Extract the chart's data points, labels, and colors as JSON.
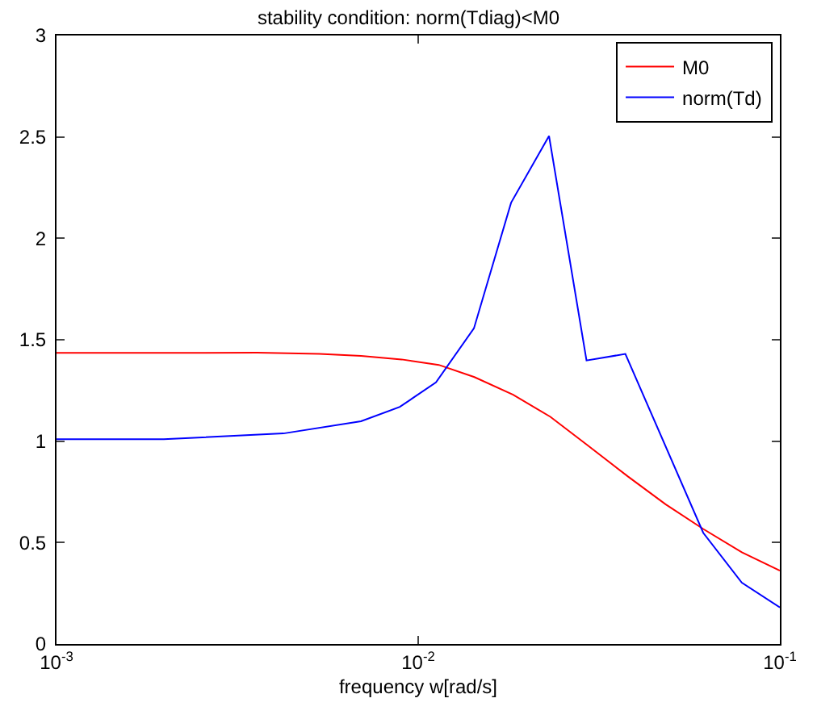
{
  "chart_data": {
    "type": "line",
    "title": "stability condition: norm(Tdiag)<M0",
    "xlabel": "frequency w[rad/s]",
    "log": "x",
    "xlim": [
      0.001,
      0.1
    ],
    "ylim": [
      0,
      3
    ],
    "xticks": [
      {
        "value": 0.001,
        "label": "10$^{-3}$"
      },
      {
        "value": 0.01,
        "label": "10$^{-2}$"
      },
      {
        "value": 0.1,
        "label": "10$^{-1}$"
      }
    ],
    "yticks": [
      0,
      0.5,
      1,
      1.5,
      2,
      2.5,
      3
    ],
    "legend": "top right",
    "marker": "none",
    "line_style": "solid",
    "series": [
      {
        "name": "M0",
        "color": "#ff0000",
        "x": [
          0.001,
          0.00359,
          0.00533,
          0.00695,
          0.009,
          0.0114,
          0.0143,
          0.0183,
          0.0232,
          0.0292,
          0.038,
          0.0483,
          0.0614,
          0.0785,
          0.1
        ],
        "values": [
          1.435,
          1.436,
          1.43,
          1.42,
          1.403,
          1.376,
          1.316,
          1.229,
          1.12,
          0.984,
          0.826,
          0.689,
          0.567,
          0.452,
          0.362
        ]
      },
      {
        "name": "norm(Td)",
        "color": "#0000ff",
        "x": [
          0.001,
          0.00198,
          0.00424,
          0.00695,
          0.0089,
          0.0112,
          0.01426,
          0.01807,
          0.023,
          0.0292,
          0.0374,
          0.0614,
          0.0785,
          0.1
        ],
        "values": [
          1.01,
          1.01,
          1.038,
          1.098,
          1.169,
          1.29,
          1.556,
          2.176,
          2.505,
          1.398,
          1.43,
          0.548,
          0.302,
          0.18
        ]
      }
    ]
  }
}
